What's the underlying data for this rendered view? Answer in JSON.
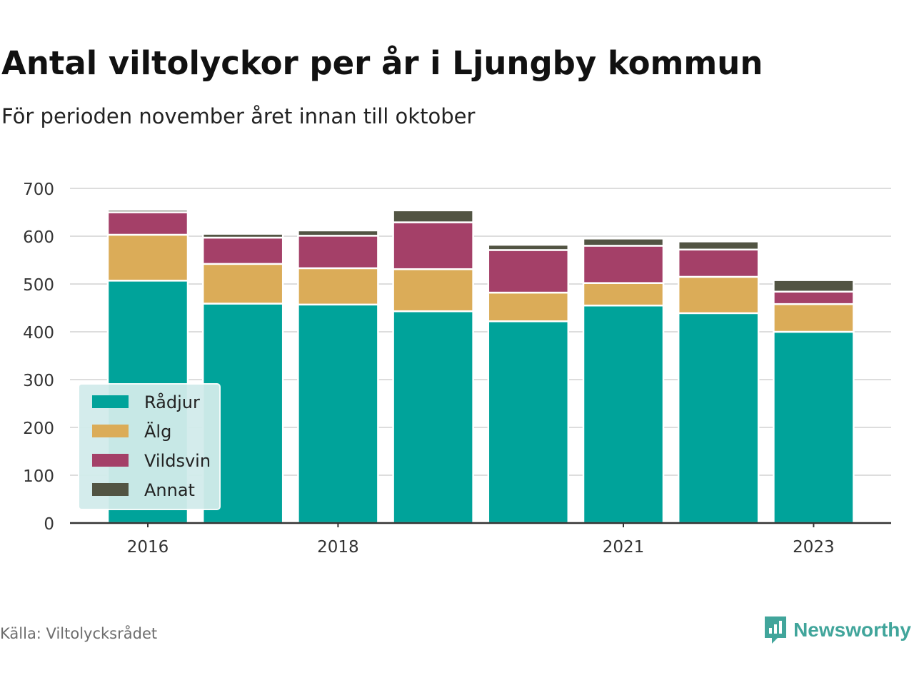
{
  "header": {
    "title": "Antal viltolyckor per år i Ljungby kommun",
    "subtitle": "För perioden november året innan till oktober"
  },
  "footer": {
    "source": "Källa: Viltolycksrådet",
    "brand": "Newsworthy"
  },
  "chart_data": {
    "type": "bar",
    "stacked": true,
    "categories": [
      "2016",
      "2017",
      "2018",
      "2019",
      "2020",
      "2021",
      "2022",
      "2023"
    ],
    "x_tick_labels": [
      "2016",
      "",
      "2018",
      "",
      "",
      "2021",
      "",
      "2023"
    ],
    "series": [
      {
        "name": "Rådjur",
        "color": "#00a39a",
        "values": [
          507,
          459,
          457,
          443,
          422,
          455,
          439,
          400
        ]
      },
      {
        "name": "Älg",
        "color": "#dbac58",
        "values": [
          96,
          83,
          76,
          88,
          60,
          47,
          76,
          58
        ]
      },
      {
        "name": "Vildsvin",
        "color": "#a44068",
        "values": [
          47,
          55,
          68,
          98,
          89,
          78,
          57,
          26
        ]
      },
      {
        "name": "Annat",
        "color": "#525443",
        "values": [
          5,
          8,
          11,
          25,
          11,
          15,
          17,
          24
        ]
      }
    ],
    "ylim": [
      0,
      700
    ],
    "yticks": [
      0,
      100,
      200,
      300,
      400,
      500,
      600,
      700
    ],
    "grid": true,
    "legend_position": "bottom-left"
  }
}
